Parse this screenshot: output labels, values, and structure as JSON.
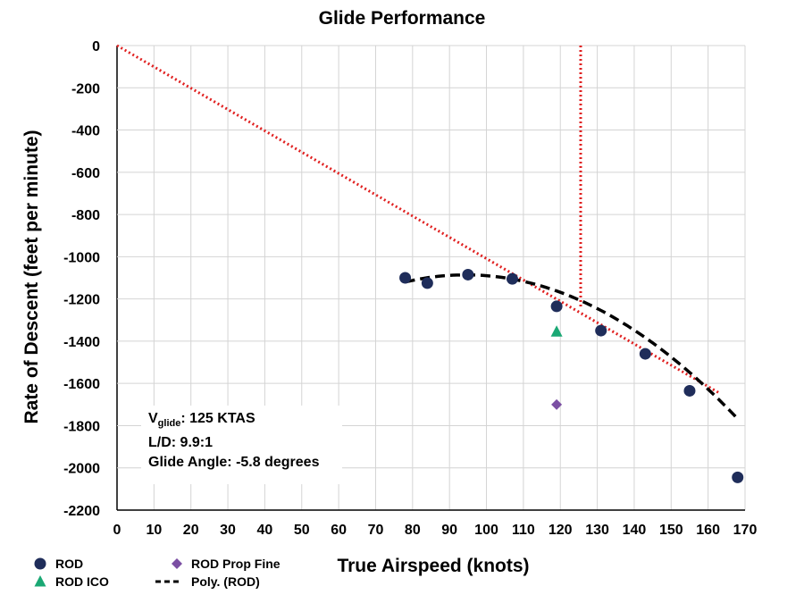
{
  "chart_data": {
    "type": "scatter",
    "title": "Glide Performance",
    "xlabel": "True Airspeed (knots)",
    "ylabel": "Rate of Descent (feet per minute)",
    "xlim": [
      0,
      170
    ],
    "ylim": [
      -2200,
      0
    ],
    "x_ticks": [
      "0",
      "10",
      "20",
      "30",
      "40",
      "50",
      "60",
      "70",
      "80",
      "90",
      "100",
      "110",
      "120",
      "130",
      "140",
      "150",
      "160",
      "170"
    ],
    "y_ticks": [
      "0",
      "-200",
      "-400",
      "-600",
      "-800",
      "-1000",
      "-1200",
      "-1400",
      "-1600",
      "-1800",
      "-2000",
      "-2200"
    ],
    "grid": true,
    "series": [
      {
        "name": "ROD",
        "kind": "circle",
        "color": "#1f2d5a",
        "x": [
          78,
          84,
          95,
          107,
          119,
          131,
          143,
          155,
          168
        ],
        "y": [
          -1100,
          -1125,
          -1085,
          -1105,
          -1235,
          -1350,
          -1460,
          -1635,
          -2045
        ]
      },
      {
        "name": "ROD ICO",
        "kind": "triangle",
        "color": "#1aa874",
        "x": [
          119
        ],
        "y": [
          -1355
        ]
      },
      {
        "name": "ROD Prop Fine",
        "kind": "diamond",
        "color": "#7b4fa3",
        "x": [
          119
        ],
        "y": [
          -1700
        ]
      },
      {
        "name": "Poly. (ROD)",
        "kind": "dashed-curve",
        "color": "#000000",
        "coefficients": [
          -0.1258,
          23.75,
          -2207
        ],
        "x_range": [
          78,
          168
        ]
      }
    ],
    "reference_lines": [
      {
        "kind": "tangent",
        "color": "#e02020",
        "x": [
          0,
          163
        ],
        "y": [
          0,
          -1645
        ]
      },
      {
        "kind": "vertical",
        "color": "#e02020",
        "x": [
          125.5,
          125.5
        ],
        "y": [
          0,
          -1240
        ]
      }
    ],
    "annotation": {
      "v_main": "V",
      "v_sub": "glide",
      "v_rest": ": 125 KTAS",
      "ld": "L/D: 9.9:1",
      "angle": "Glide Angle: -5.8 degrees"
    },
    "legend_position": "bottom-left"
  }
}
